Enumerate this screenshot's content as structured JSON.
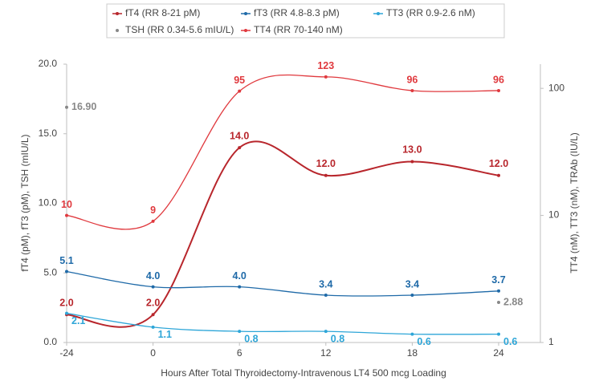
{
  "chart_data": {
    "type": "line",
    "categories": [
      "-24",
      "0",
      "6",
      "12",
      "18",
      "24"
    ],
    "xlabel": "Hours After Total Thyroidectomy-Intravenous LT4 500 mcg Loading",
    "ylabel": "fT4 (pM), fT3 (pM), TSH (mIU/L)",
    "y2label": "TT4 (nM), TT3 (nM), TRAb (IU/L)",
    "ylim": [
      0,
      20
    ],
    "yticks": [
      {
        "value": 0,
        "label": "0.0"
      },
      {
        "value": 5,
        "label": "5.0"
      },
      {
        "value": 10,
        "label": "10.0"
      },
      {
        "value": 15,
        "label": "15.0"
      },
      {
        "value": 20,
        "label": "20.0"
      }
    ],
    "y2lim": [
      1,
      155
    ],
    "y2scale": "log",
    "y2ticks": [
      1,
      10,
      100
    ],
    "grid": false,
    "legend": "top",
    "series": [
      {
        "name": "fT4 (RR 8-21 pM)",
        "color": "#b8262c",
        "values": [
          2,
          2,
          14,
          12,
          13,
          12
        ],
        "value_labels": [
          "2.0",
          "2.0",
          "14.0",
          "12.0",
          "13.0",
          "12.0"
        ]
      },
      {
        "name": "fT3 (RR 4.8-8.3 pM)",
        "color": "#1f6aa8",
        "values": [
          5.1,
          4,
          4,
          3.4,
          3.4,
          3.7
        ],
        "value_labels": [
          "5.1",
          "4.0",
          "4.0",
          "3.4",
          "3.4",
          "3.7"
        ]
      },
      {
        "name": "TT3 (RR 0.9-2.6 nM)",
        "color": "#2ea6d8",
        "values": [
          2.1,
          1.1,
          0.8,
          0.8,
          0.6,
          0.6
        ]
      },
      {
        "name": "TSH (RR 0.34-5.6 mIU/L)",
        "color": "#888888",
        "marker_only": true,
        "values": [
          16.9,
          null,
          null,
          null,
          null,
          2.88
        ],
        "value_labels": [
          "16.90",
          null,
          null,
          null,
          null,
          "2.88"
        ]
      },
      {
        "name": "TT4 (RR 70-140 nM)",
        "color": "#e0393e",
        "axis": "y2",
        "values": [
          10,
          9,
          95,
          123,
          96,
          96
        ]
      }
    ]
  }
}
